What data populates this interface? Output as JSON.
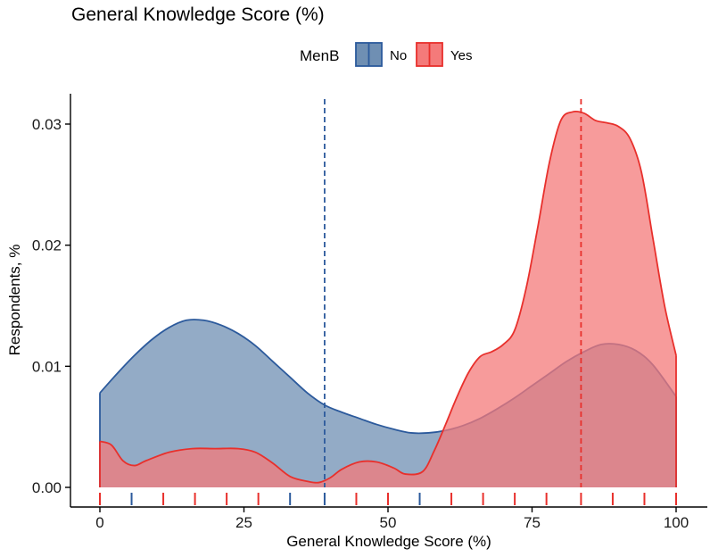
{
  "chart_data": {
    "type": "area",
    "title": "General Knowledge Score (%)",
    "xlabel": "General Knowledge Score (%)",
    "ylabel": "Respondents, %",
    "xlim": [
      0,
      100
    ],
    "ylim": [
      0,
      0.032
    ],
    "x_ticks": [
      0,
      25,
      50,
      75,
      100
    ],
    "x_tick_labels": [
      "0",
      "25",
      "50",
      "75",
      "100"
    ],
    "y_ticks": [
      0,
      0.01,
      0.02,
      0.03
    ],
    "y_tick_labels": [
      "0.00",
      "0.01",
      "0.02",
      "0.03"
    ],
    "grid": false,
    "legend": {
      "title": "MenB",
      "position": "top"
    },
    "series": [
      {
        "name": "No",
        "color": "#2c5a9c",
        "fill": "#6f8fb3",
        "mean": 39,
        "points": [
          [
            0,
            0.0078
          ],
          [
            3,
            0.0094
          ],
          [
            6,
            0.0109
          ],
          [
            9,
            0.0122
          ],
          [
            12,
            0.0132
          ],
          [
            15,
            0.0138
          ],
          [
            18,
            0.0138
          ],
          [
            21,
            0.0134
          ],
          [
            24,
            0.0127
          ],
          [
            27,
            0.0117
          ],
          [
            30,
            0.0104
          ],
          [
            33,
            0.0091
          ],
          [
            36,
            0.0078
          ],
          [
            39,
            0.0068
          ],
          [
            42,
            0.0062
          ],
          [
            45,
            0.0057
          ],
          [
            48,
            0.0052
          ],
          [
            51,
            0.0048
          ],
          [
            54,
            0.0045
          ],
          [
            57,
            0.0045
          ],
          [
            60,
            0.0047
          ],
          [
            63,
            0.0051
          ],
          [
            66,
            0.0057
          ],
          [
            69,
            0.0065
          ],
          [
            72,
            0.0074
          ],
          [
            75,
            0.0084
          ],
          [
            78,
            0.0094
          ],
          [
            81,
            0.0104
          ],
          [
            84,
            0.0112
          ],
          [
            87,
            0.0118
          ],
          [
            90,
            0.0118
          ],
          [
            93,
            0.0113
          ],
          [
            96,
            0.0101
          ],
          [
            100,
            0.0075
          ]
        ],
        "rug": [
          5.5,
          33,
          39,
          55.5
        ]
      },
      {
        "name": "Yes",
        "color": "#e8302c",
        "fill": "#f47a7a",
        "mean": 83.5,
        "points": [
          [
            0,
            0.0038
          ],
          [
            2,
            0.0035
          ],
          [
            4,
            0.0022
          ],
          [
            6,
            0.0018
          ],
          [
            8,
            0.0022
          ],
          [
            12,
            0.0029
          ],
          [
            16,
            0.0032
          ],
          [
            20,
            0.0032
          ],
          [
            24,
            0.0032
          ],
          [
            27,
            0.0029
          ],
          [
            30,
            0.002
          ],
          [
            33,
            0.0009
          ],
          [
            36,
            0.0005
          ],
          [
            38,
            0.0004
          ],
          [
            40,
            0.0008
          ],
          [
            42,
            0.0015
          ],
          [
            45,
            0.0021
          ],
          [
            48,
            0.0021
          ],
          [
            51,
            0.0016
          ],
          [
            53,
            0.0011
          ],
          [
            56,
            0.0013
          ],
          [
            58,
            0.003
          ],
          [
            60,
            0.0052
          ],
          [
            62,
            0.0075
          ],
          [
            64,
            0.0095
          ],
          [
            66,
            0.0108
          ],
          [
            68,
            0.0112
          ],
          [
            70,
            0.0118
          ],
          [
            72,
            0.013
          ],
          [
            74,
            0.0165
          ],
          [
            76,
            0.0215
          ],
          [
            78,
            0.0268
          ],
          [
            80,
            0.0303
          ],
          [
            82,
            0.031
          ],
          [
            84,
            0.0309
          ],
          [
            86,
            0.0303
          ],
          [
            88,
            0.0301
          ],
          [
            90,
            0.0298
          ],
          [
            92,
            0.0288
          ],
          [
            94,
            0.026
          ],
          [
            96,
            0.0205
          ],
          [
            98,
            0.015
          ],
          [
            100,
            0.0109
          ]
        ],
        "rug": [
          0,
          11,
          16.5,
          22,
          27.5,
          44.5,
          50,
          61,
          66.5,
          72,
          77.5,
          83.5,
          89,
          94.5,
          100
        ]
      }
    ]
  }
}
